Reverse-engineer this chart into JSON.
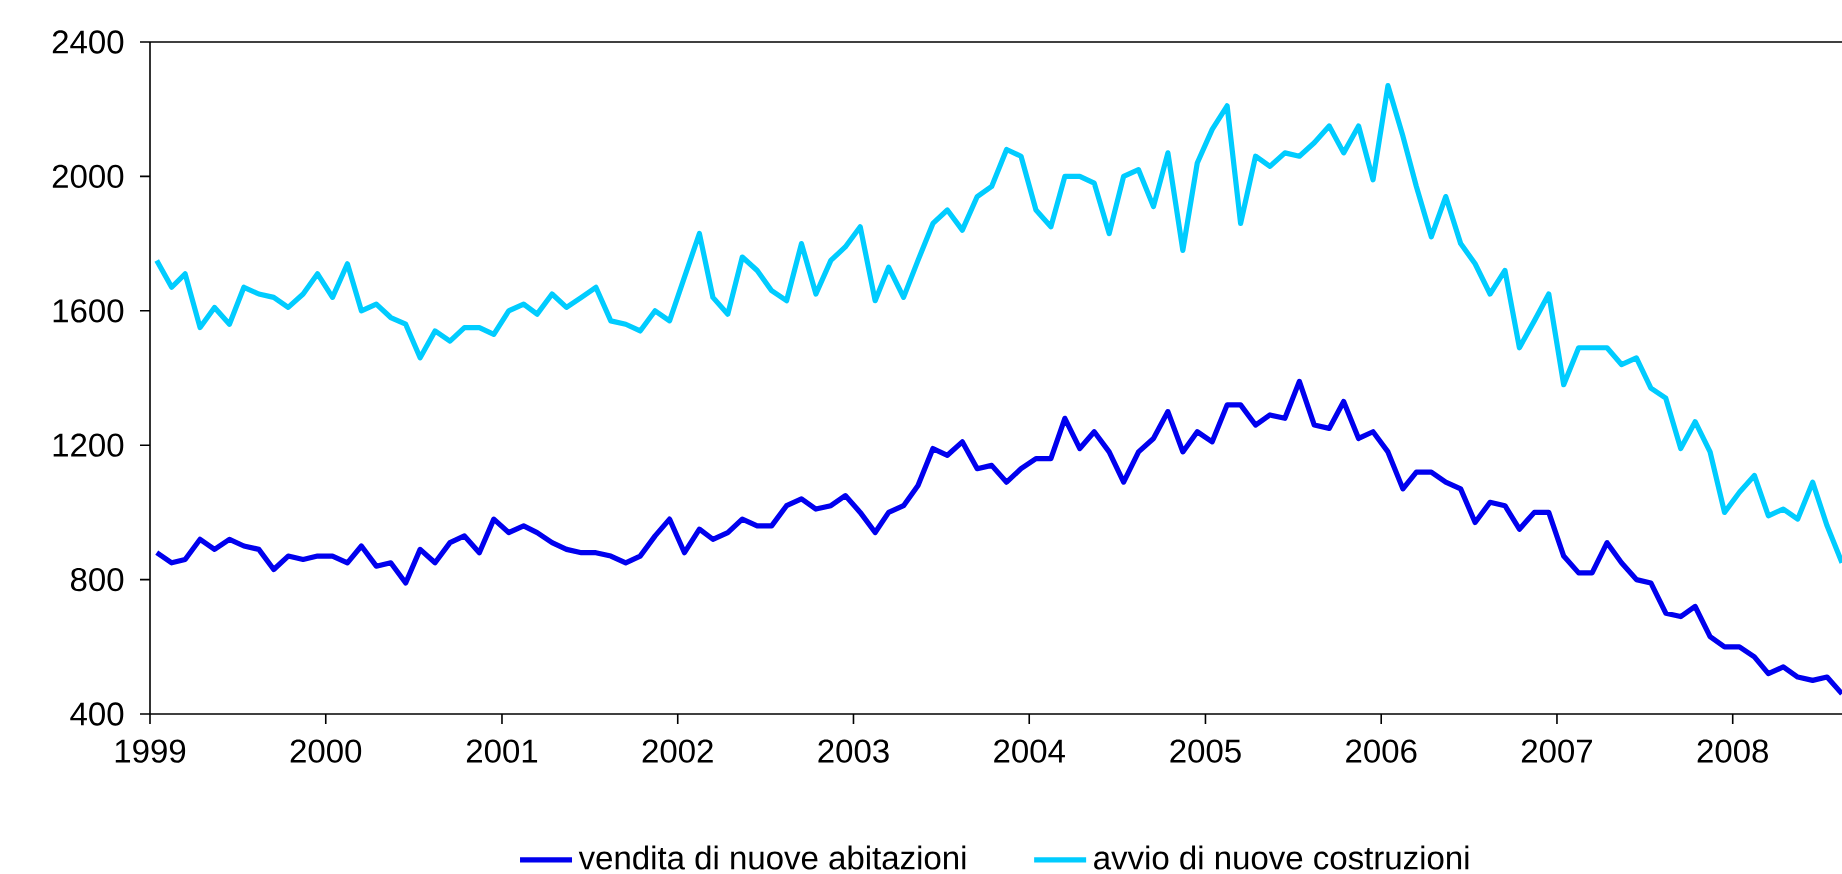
{
  "chart_data": {
    "type": "line",
    "legend": "bottom",
    "marker": "none",
    "line_style": "solid",
    "xlim": [
      "1999-01-01",
      "2008-08-15"
    ],
    "ylim": [
      400,
      2400
    ],
    "xticks": [
      {
        "value": "1999",
        "label": "1999"
      },
      {
        "value": "2000",
        "label": "2000"
      },
      {
        "value": "2001",
        "label": "2001"
      },
      {
        "value": "2002",
        "label": "2002"
      },
      {
        "value": "2003",
        "label": "2003"
      },
      {
        "value": "2004",
        "label": "2004"
      },
      {
        "value": "2005",
        "label": "2005"
      },
      {
        "value": "2006",
        "label": "2006"
      },
      {
        "value": "2007",
        "label": "2007"
      },
      {
        "value": "2008",
        "label": "2008"
      }
    ],
    "yticks": [
      400,
      800,
      1200,
      1600,
      2000,
      2400
    ],
    "x": [
      "1999-01-15",
      "1999-02-15",
      "1999-03-15",
      "1999-04-15",
      "1999-05-15",
      "1999-06-15",
      "1999-07-15",
      "1999-08-15",
      "1999-09-15",
      "1999-10-15",
      "1999-11-15",
      "1999-12-15",
      "2000-01-15",
      "2000-02-15",
      "2000-03-15",
      "2000-04-15",
      "2000-05-15",
      "2000-06-15",
      "2000-07-15",
      "2000-08-15",
      "2000-09-15",
      "2000-10-15",
      "2000-11-15",
      "2000-12-15",
      "2001-01-15",
      "2001-02-15",
      "2001-03-15",
      "2001-04-15",
      "2001-05-15",
      "2001-06-15",
      "2001-07-15",
      "2001-08-15",
      "2001-09-15",
      "2001-10-15",
      "2001-11-15",
      "2001-12-15",
      "2002-01-15",
      "2002-02-15",
      "2002-03-15",
      "2002-04-15",
      "2002-05-15",
      "2002-06-15",
      "2002-07-15",
      "2002-08-15",
      "2002-09-15",
      "2002-10-15",
      "2002-11-15",
      "2002-12-15",
      "2003-01-15",
      "2003-02-15",
      "2003-03-15",
      "2003-04-15",
      "2003-05-15",
      "2003-06-15",
      "2003-07-15",
      "2003-08-15",
      "2003-09-15",
      "2003-10-15",
      "2003-11-15",
      "2003-12-15",
      "2004-01-15",
      "2004-02-15",
      "2004-03-15",
      "2004-04-15",
      "2004-05-15",
      "2004-06-15",
      "2004-07-15",
      "2004-08-15",
      "2004-09-15",
      "2004-10-15",
      "2004-11-15",
      "2004-12-15",
      "2005-01-15",
      "2005-02-15",
      "2005-03-15",
      "2005-04-15",
      "2005-05-15",
      "2005-06-15",
      "2005-07-15",
      "2005-08-15",
      "2005-09-15",
      "2005-10-15",
      "2005-11-15",
      "2005-12-15",
      "2006-01-15",
      "2006-02-15",
      "2006-03-15",
      "2006-04-15",
      "2006-05-15",
      "2006-06-15",
      "2006-07-15",
      "2006-08-15",
      "2006-09-15",
      "2006-10-15",
      "2006-11-15",
      "2006-12-15",
      "2007-01-15",
      "2007-02-15",
      "2007-03-15",
      "2007-04-15",
      "2007-05-15",
      "2007-06-15",
      "2007-07-15",
      "2007-08-15",
      "2007-09-15",
      "2007-10-15",
      "2007-11-15",
      "2007-12-15",
      "2008-01-15",
      "2008-02-15",
      "2008-03-15",
      "2008-04-15",
      "2008-05-15",
      "2008-06-15",
      "2008-07-15",
      "2008-08-15"
    ],
    "series": [
      {
        "name": "vendita di nuove abitazioni",
        "color": "#0000ee",
        "values": [
          880,
          850,
          860,
          920,
          890,
          920,
          900,
          890,
          830,
          870,
          860,
          870,
          870,
          850,
          900,
          840,
          850,
          790,
          890,
          850,
          910,
          930,
          880,
          980,
          940,
          960,
          940,
          910,
          890,
          880,
          880,
          870,
          850,
          870,
          930,
          980,
          880,
          950,
          920,
          940,
          980,
          960,
          960,
          1020,
          1040,
          1010,
          1020,
          1050,
          1000,
          940,
          1000,
          1020,
          1080,
          1190,
          1170,
          1210,
          1130,
          1140,
          1090,
          1130,
          1160,
          1160,
          1280,
          1190,
          1240,
          1180,
          1090,
          1180,
          1220,
          1300,
          1180,
          1240,
          1210,
          1320,
          1320,
          1260,
          1290,
          1280,
          1390,
          1260,
          1250,
          1330,
          1220,
          1240,
          1180,
          1070,
          1120,
          1120,
          1090,
          1070,
          970,
          1030,
          1020,
          950,
          1000,
          1000,
          870,
          820,
          820,
          910,
          850,
          800,
          790,
          700,
          690,
          720,
          630,
          600,
          600,
          570,
          520,
          540,
          510,
          500,
          510,
          460
        ]
      },
      {
        "name": "avvio di nuove costruzioni",
        "color": "#00ccff",
        "values": [
          1750,
          1670,
          1710,
          1550,
          1610,
          1560,
          1670,
          1650,
          1640,
          1610,
          1650,
          1710,
          1640,
          1740,
          1600,
          1620,
          1580,
          1560,
          1460,
          1540,
          1510,
          1550,
          1550,
          1530,
          1600,
          1620,
          1590,
          1650,
          1610,
          1640,
          1670,
          1570,
          1560,
          1540,
          1600,
          1570,
          1700,
          1830,
          1640,
          1590,
          1760,
          1720,
          1660,
          1630,
          1800,
          1650,
          1750,
          1790,
          1850,
          1630,
          1730,
          1640,
          1750,
          1860,
          1900,
          1840,
          1940,
          1970,
          2080,
          2060,
          1900,
          1850,
          2000,
          2000,
          1980,
          1830,
          2000,
          2020,
          1910,
          2070,
          1780,
          2040,
          2140,
          2210,
          1860,
          2060,
          2030,
          2070,
          2060,
          2100,
          2150,
          2070,
          2150,
          1990,
          2270,
          2120,
          1970,
          1820,
          1940,
          1800,
          1740,
          1650,
          1720,
          1490,
          1570,
          1650,
          1380,
          1490,
          1490,
          1490,
          1440,
          1460,
          1370,
          1340,
          1190,
          1270,
          1180,
          1000,
          1060,
          1110,
          990,
          1010,
          980,
          1090,
          960,
          850
        ]
      }
    ]
  }
}
